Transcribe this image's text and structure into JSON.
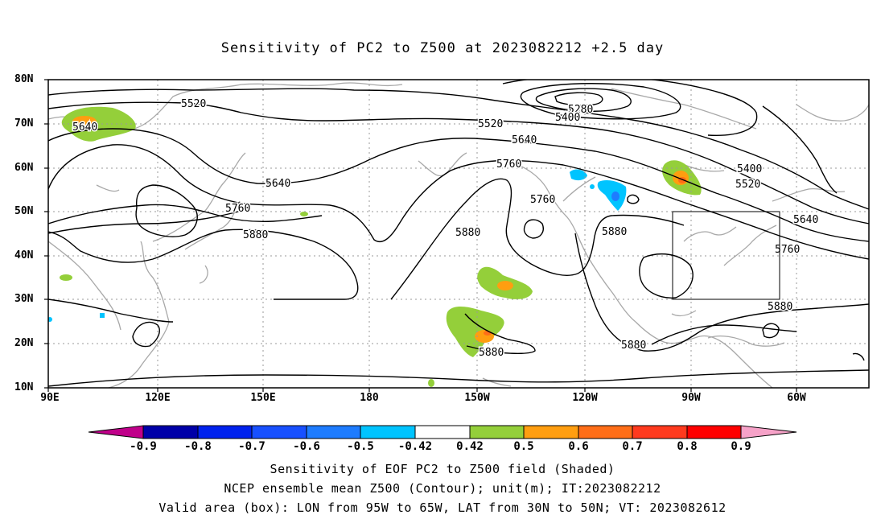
{
  "title": "Sensitivity of PC2 to Z500 at 2023082212 +2.5 day",
  "lat_labels": [
    "80N",
    "70N",
    "60N",
    "50N",
    "40N",
    "30N",
    "20N",
    "10N"
  ],
  "lon_labels": [
    "90E",
    "120E",
    "150E",
    "180",
    "150W",
    "120W",
    "90W",
    "60W"
  ],
  "contour_labels": {
    "c5520a": "5520",
    "c5640a": "5640",
    "c5640b": "5640",
    "c5760a": "5760",
    "c5880a": "5880",
    "c5280": "5280",
    "c5400a": "5400",
    "c5520b": "5520",
    "c5640c": "5640",
    "c5760b": "5760",
    "c5760c": "5760",
    "c5880b": "5880",
    "c5880c": "5880",
    "c5400b": "5400",
    "c5520c": "5520",
    "c5640d": "5640",
    "c5760d": "5760",
    "c5880d": "5880",
    "c5880e": "5880",
    "c5880f": "5880"
  },
  "colorbar": {
    "labels": [
      "-0.9",
      "-0.8",
      "-0.7",
      "-0.6",
      "-0.5",
      "-0.42",
      "0.42",
      "0.5",
      "0.6",
      "0.7",
      "0.8",
      "0.9"
    ],
    "colors": [
      "#0000a8",
      "#0022ee",
      "#1850ff",
      "#1e7cff",
      "#00c4ff",
      "#ffffff",
      "#94cf3a",
      "#ff9e10",
      "#ff6e18",
      "#ff3a1e",
      "#ff0000"
    ],
    "left_tip": "#c0008a",
    "right_tip": "#f6a2c8"
  },
  "footer": {
    "line1": "Sensitivity of EOF PC2 to Z500 field (Shaded)",
    "line2": "NCEP ensemble mean Z500 (Contour); unit(m); IT:2023082212",
    "line3": "Valid area (box): LON from 95W to 65W, LAT from 30N to 50N; VT: 2023082612"
  }
}
